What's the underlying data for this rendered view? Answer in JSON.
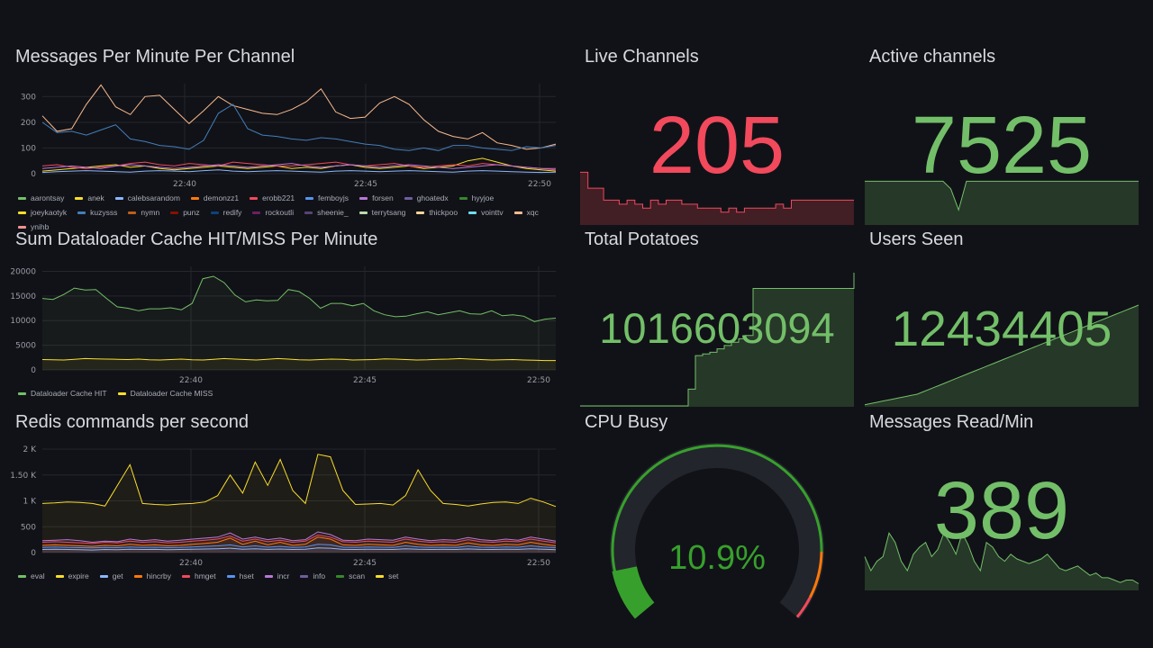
{
  "colors": {
    "red": "#f2495c",
    "green": "#73bf69",
    "yellow": "#fade2a",
    "background": "#111217",
    "grid": "#2a2c33",
    "tick": "#9a9ca6"
  },
  "messages_panel": {
    "title": "Messages Per Minute Per Channel",
    "legend": [
      {
        "name": "aarontsay",
        "color": "#73bf69"
      },
      {
        "name": "anek",
        "color": "#fade2a"
      },
      {
        "name": "calebsarandom",
        "color": "#8ab8ff"
      },
      {
        "name": "demonzz1",
        "color": "#ff780a"
      },
      {
        "name": "erobb221",
        "color": "#f2495c"
      },
      {
        "name": "femboyjs",
        "color": "#5794f2"
      },
      {
        "name": "forsen",
        "color": "#b877d9"
      },
      {
        "name": "ghoatedx",
        "color": "#705da0"
      },
      {
        "name": "hyyjoe",
        "color": "#37872d"
      },
      {
        "name": "joeykaotyk",
        "color": "#fade2a"
      },
      {
        "name": "kuzysss",
        "color": "#447ebc"
      },
      {
        "name": "nymn",
        "color": "#c15c17"
      },
      {
        "name": "punz",
        "color": "#890f02"
      },
      {
        "name": "redify",
        "color": "#0a437c"
      },
      {
        "name": "rockoutli",
        "color": "#6d1f62"
      },
      {
        "name": "sheenie_",
        "color": "#584477"
      },
      {
        "name": "terrytsang",
        "color": "#b7dbab"
      },
      {
        "name": "thickpoo",
        "color": "#f4d598"
      },
      {
        "name": "vointtv",
        "color": "#70dbed"
      },
      {
        "name": "xqc",
        "color": "#f9ba8f"
      },
      {
        "name": "ynihb",
        "color": "#f29191"
      }
    ]
  },
  "cache_panel": {
    "title": "Sum Dataloader Cache HIT/MISS Per Minute",
    "legend": [
      {
        "name": "Dataloader Cache HIT",
        "color": "#73bf69"
      },
      {
        "name": "Dataloader Cache MISS",
        "color": "#fade2a"
      }
    ]
  },
  "redis_panel": {
    "title": "Redis commands per second",
    "legend": [
      {
        "name": "eval",
        "color": "#73bf69"
      },
      {
        "name": "expire",
        "color": "#fade2a"
      },
      {
        "name": "get",
        "color": "#8ab8ff"
      },
      {
        "name": "hincrby",
        "color": "#ff780a"
      },
      {
        "name": "hmget",
        "color": "#f2495c"
      },
      {
        "name": "hset",
        "color": "#5794f2"
      },
      {
        "name": "incr",
        "color": "#b877d9"
      },
      {
        "name": "info",
        "color": "#705da0"
      },
      {
        "name": "scan",
        "color": "#37872d"
      },
      {
        "name": "set",
        "color": "#fade2a"
      }
    ]
  },
  "live_channels": {
    "title": "Live Channels",
    "value": "205",
    "color": "#f2495c"
  },
  "active_channels": {
    "title": "Active channels",
    "value": "7525",
    "color": "#73bf69"
  },
  "total_potatoes": {
    "title": "Total Potatoes",
    "value": "1016603094",
    "color": "#73bf69"
  },
  "users_seen": {
    "title": "Users Seen",
    "value": "12434405",
    "color": "#73bf69"
  },
  "cpu_busy": {
    "title": "CPU Busy",
    "value": "10.9%",
    "percent": 10.9,
    "color": "#37a02c"
  },
  "messages_read": {
    "title": "Messages Read/Min",
    "value": "389",
    "color": "#73bf69"
  },
  "chart_data": [
    {
      "id": "messages",
      "type": "line",
      "title": "Messages Per Minute Per Channel",
      "x_ticks": [
        "22:40",
        "22:45",
        "22:50"
      ],
      "y_ticks": [
        "0",
        "100",
        "200",
        "300"
      ],
      "ylim": [
        0,
        350
      ],
      "series": [
        {
          "name": "xqc",
          "values": [
            225,
            165,
            175,
            270,
            345,
            260,
            230,
            300,
            305,
            250,
            195,
            245,
            300,
            265,
            250,
            235,
            230,
            250,
            280,
            330,
            240,
            215,
            220,
            275,
            300,
            270,
            210,
            165,
            145,
            135,
            160,
            120,
            110,
            95,
            100,
            115
          ]
        },
        {
          "name": "kuzysss",
          "values": [
            200,
            160,
            165,
            150,
            170,
            190,
            135,
            125,
            110,
            105,
            95,
            130,
            235,
            270,
            175,
            150,
            145,
            135,
            130,
            140,
            135,
            125,
            115,
            110,
            95,
            90,
            100,
            90,
            110,
            110,
            100,
            95,
            90,
            105,
            100,
            110
          ]
        },
        {
          "name": "anek",
          "values": [
            10,
            15,
            20,
            25,
            30,
            35,
            25,
            30,
            20,
            15,
            20,
            25,
            30,
            25,
            20,
            25,
            30,
            20,
            25,
            20,
            30,
            35,
            25,
            20,
            25,
            30,
            20,
            25,
            30,
            50,
            60,
            45,
            30,
            20,
            15,
            10
          ]
        },
        {
          "name": "erobb221",
          "values": [
            30,
            35,
            25,
            20,
            25,
            30,
            40,
            45,
            35,
            30,
            40,
            35,
            30,
            45,
            40,
            35,
            30,
            30,
            35,
            40,
            45,
            35,
            30,
            35,
            40,
            30,
            25,
            30,
            35,
            30,
            40,
            35,
            30,
            25,
            20,
            15
          ]
        },
        {
          "name": "forsen",
          "values": [
            20,
            25,
            30,
            25,
            20,
            30,
            35,
            30,
            25,
            20,
            25,
            30,
            35,
            30,
            25,
            30,
            35,
            40,
            30,
            25,
            30,
            35,
            30,
            25,
            30,
            35,
            30,
            25,
            20,
            25,
            30,
            35,
            30,
            25,
            20,
            20
          ]
        },
        {
          "name": "calebsarandom",
          "values": [
            5,
            8,
            10,
            12,
            10,
            8,
            6,
            10,
            12,
            10,
            8,
            12,
            15,
            10,
            8,
            10,
            12,
            10,
            8,
            6,
            10,
            12,
            10,
            8,
            10,
            12,
            10,
            8,
            6,
            10,
            12,
            10,
            8,
            6,
            5,
            6
          ]
        }
      ]
    },
    {
      "id": "cache",
      "type": "area",
      "title": "Sum Dataloader Cache HIT/MISS Per Minute",
      "x_ticks": [
        "22:40",
        "22:45",
        "22:50"
      ],
      "y_ticks": [
        "0",
        "5000",
        "10000",
        "15000",
        "20000"
      ],
      "ylim": [
        0,
        21000
      ],
      "series": [
        {
          "name": "Dataloader Cache HIT",
          "values": [
            14500,
            14300,
            15300,
            16600,
            16200,
            16300,
            14500,
            12800,
            12500,
            12000,
            12400,
            12400,
            12600,
            12200,
            13500,
            18500,
            19000,
            17700,
            15200,
            13800,
            14200,
            14000,
            14100,
            16300,
            15900,
            14500,
            12500,
            13500,
            13500,
            13000,
            13500,
            12000,
            11200,
            10800,
            10900,
            11400,
            11800,
            11200,
            11600,
            12000,
            11400,
            11300,
            12000,
            11000,
            11200,
            10900,
            9800,
            10300,
            10500
          ]
        },
        {
          "name": "Dataloader Cache MISS",
          "values": [
            2100,
            2050,
            2000,
            2150,
            2300,
            2250,
            2200,
            2150,
            2100,
            2200,
            2050,
            2000,
            2100,
            2200,
            2050,
            2000,
            2150,
            2300,
            2200,
            2100,
            2000,
            2150,
            2300,
            2200,
            2050,
            2000,
            2100,
            2200,
            2150,
            2000,
            2050,
            2100,
            2250,
            2200,
            2100,
            2000,
            2050,
            2150,
            2200,
            2300,
            2200,
            2100,
            2000,
            2050,
            2100,
            2000,
            1950,
            1900,
            1900
          ]
        }
      ]
    },
    {
      "id": "redis",
      "type": "line",
      "title": "Redis commands per second",
      "x_ticks": [
        "22:40",
        "22:45",
        "22:50"
      ],
      "y_ticks": [
        "0",
        "500",
        "1 K",
        "1.50 K",
        "2 K"
      ],
      "ylim": [
        0,
        2000
      ],
      "series": [
        {
          "name": "set",
          "values": [
            950,
            960,
            980,
            970,
            950,
            900,
            1300,
            1700,
            950,
            930,
            920,
            940,
            950,
            980,
            1100,
            1500,
            1150,
            1750,
            1300,
            1800,
            1200,
            950,
            1900,
            1850,
            1200,
            930,
            940,
            950,
            920,
            1100,
            1600,
            1200,
            950,
            930,
            900,
            940,
            970,
            980,
            950,
            1050,
            980,
            890
          ]
        },
        {
          "name": "incr",
          "values": [
            230,
            240,
            250,
            230,
            200,
            220,
            210,
            260,
            230,
            250,
            220,
            240,
            260,
            280,
            300,
            380,
            260,
            300,
            250,
            280,
            230,
            250,
            400,
            350,
            240,
            230,
            260,
            250,
            240,
            300,
            260,
            230,
            250,
            240,
            290,
            250,
            230,
            260,
            240,
            300,
            260,
            220
          ]
        },
        {
          "name": "hmget",
          "values": [
            200,
            210,
            200,
            190,
            180,
            200,
            190,
            220,
            200,
            210,
            190,
            200,
            220,
            240,
            260,
            320,
            220,
            260,
            210,
            240,
            200,
            220,
            340,
            300,
            210,
            200,
            220,
            210,
            200,
            260,
            220,
            200,
            210,
            200,
            250,
            210,
            200,
            220,
            210,
            260,
            220,
            190
          ]
        },
        {
          "name": "hincrby",
          "values": [
            140,
            150,
            140,
            130,
            120,
            140,
            130,
            160,
            140,
            150,
            130,
            140,
            160,
            180,
            200,
            280,
            160,
            220,
            150,
            200,
            140,
            160,
            300,
            260,
            150,
            140,
            160,
            150,
            140,
            200,
            160,
            140,
            150,
            140,
            190,
            150,
            140,
            160,
            150,
            200,
            160,
            130
          ]
        },
        {
          "name": "hset",
          "values": [
            100,
            110,
            100,
            95,
            90,
            100,
            95,
            110,
            100,
            105,
            95,
            100,
            110,
            120,
            130,
            150,
            110,
            130,
            105,
            120,
            100,
            110,
            160,
            150,
            105,
            100,
            110,
            105,
            100,
            130,
            110,
            100,
            105,
            100,
            125,
            105,
            100,
            110,
            105,
            130,
            110,
            95
          ]
        },
        {
          "name": "get",
          "values": [
            60,
            65,
            60,
            55,
            50,
            60,
            55,
            65,
            60,
            62,
            55,
            60,
            65,
            70,
            75,
            85,
            65,
            75,
            62,
            70,
            60,
            65,
            90,
            85,
            62,
            60,
            65,
            62,
            60,
            75,
            65,
            60,
            62,
            60,
            72,
            62,
            60,
            65,
            62,
            75,
            65,
            55
          ]
        }
      ]
    },
    {
      "id": "live_spark",
      "type": "area",
      "values": [
        65,
        45,
        45,
        30,
        30,
        25,
        30,
        25,
        20,
        30,
        25,
        30,
        30,
        25,
        25,
        20,
        20,
        20,
        15,
        20,
        15,
        20,
        20,
        20,
        20,
        25,
        20,
        30,
        30,
        30,
        30,
        30,
        30,
        30,
        30,
        30
      ]
    },
    {
      "id": "active_spark",
      "type": "area",
      "values": [
        7525,
        7525,
        7525,
        7525,
        7525,
        7525,
        7525,
        7525,
        7525,
        7525,
        7525,
        6200,
        2500,
        7525,
        7525,
        7525,
        7525,
        7525,
        7525,
        7525,
        7525,
        7525,
        7525,
        7525,
        7525,
        7525,
        7525,
        7525,
        7525,
        7525,
        7525,
        7525,
        7525,
        7525,
        7525,
        7525
      ]
    },
    {
      "id": "potatoes_spark",
      "type": "area",
      "values": [
        1016602300,
        1016602300,
        1016602300,
        1016602300,
        1016602300,
        1016602300,
        1016602300,
        1016602300,
        1016602300,
        1016602300,
        1016602300,
        1016602300,
        1016602300,
        1016602300,
        1016602300,
        1016602400,
        1016602600,
        1016602610,
        1016602620,
        1016602640,
        1016602660,
        1016602680,
        1016602700,
        1016602720,
        1016603000,
        1016603000,
        1016603000,
        1016603000,
        1016603000,
        1016603000,
        1016603000,
        1016603000,
        1016603000,
        1016603000,
        1016603000,
        1016603000,
        1016603000,
        1016603000,
        1016603094
      ]
    },
    {
      "id": "users_spark",
      "type": "area",
      "values": [
        1,
        2,
        3,
        4,
        5,
        6,
        7,
        8,
        9,
        10,
        12,
        14,
        16,
        18,
        20,
        22,
        24,
        26,
        28,
        30,
        32,
        34,
        36,
        38,
        40,
        42,
        44,
        46,
        48,
        50,
        52,
        54,
        56,
        58,
        60,
        62,
        64,
        66,
        68,
        70,
        72,
        74,
        76,
        78,
        80,
        82,
        84,
        86
      ]
    },
    {
      "id": "msgs_spark",
      "type": "area",
      "values": [
        320,
        260,
        300,
        320,
        420,
        380,
        300,
        260,
        330,
        360,
        380,
        320,
        350,
        420,
        380,
        330,
        420,
        370,
        300,
        260,
        380,
        360,
        320,
        300,
        330,
        310,
        300,
        290,
        300,
        310,
        330,
        300,
        270,
        260,
        270,
        280,
        260,
        240,
        250,
        230,
        230,
        220,
        210,
        220,
        220,
        205
      ]
    }
  ]
}
